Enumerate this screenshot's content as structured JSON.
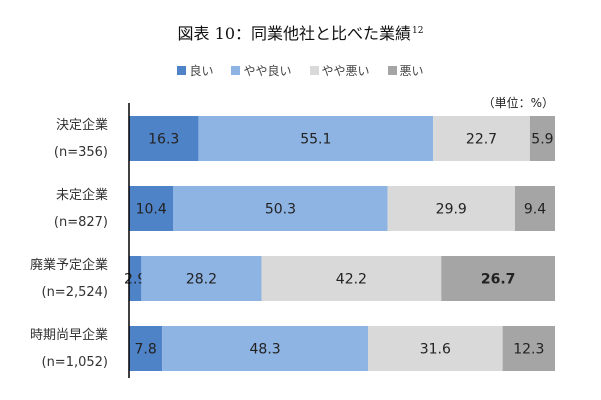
{
  "chart_data": {
    "type": "bar",
    "orientation": "horizontal",
    "stacked": true,
    "title": "図表 10：同業他社と比べた業績",
    "title_superscript": "12",
    "unit_label": "（単位：%）",
    "categories": [
      {
        "name": "決定企業",
        "n": "(n=356)"
      },
      {
        "name": "未定企業",
        "n": "(n=827)"
      },
      {
        "name": "廃業予定企業",
        "n": "(n=2,524)"
      },
      {
        "name": "時期尚早企業",
        "n": "(n=1,052)"
      }
    ],
    "series": [
      {
        "name": "良い",
        "color": "#4f83c8",
        "values": [
          16.3,
          10.4,
          2.9,
          7.8
        ]
      },
      {
        "name": "やや良い",
        "color": "#8eb4e3",
        "values": [
          55.1,
          50.3,
          28.2,
          48.3
        ]
      },
      {
        "name": "やや悪い",
        "color": "#d9d9d9",
        "values": [
          22.7,
          29.9,
          42.2,
          31.6
        ]
      },
      {
        "name": "悪い",
        "color": "#a5a5a5",
        "values": [
          5.9,
          9.4,
          26.7,
          12.3
        ]
      }
    ],
    "xlim": [
      0,
      100
    ],
    "legend_position": "top",
    "grid": false
  }
}
